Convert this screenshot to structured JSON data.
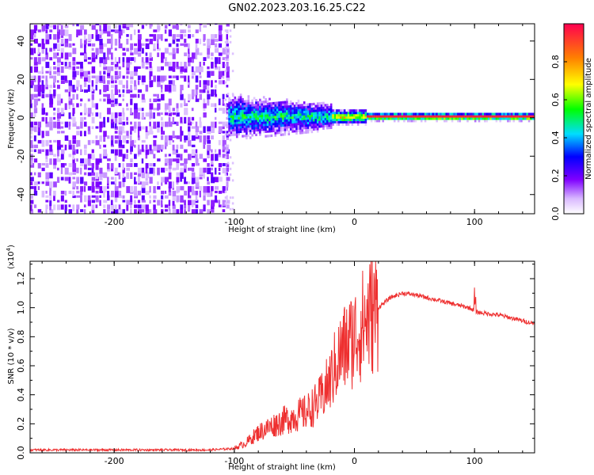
{
  "title": "GN02.2023.203.16.25.C22",
  "colors": {
    "snr_line": "#ee3030",
    "frame": "#000000",
    "background": "#ffffff"
  },
  "chart_data": [
    {
      "type": "heatmap",
      "xlabel": "Height of straight line (km)",
      "ylabel": "Frequency (Hz)",
      "xlim": [
        -270,
        150
      ],
      "ylim": [
        -50,
        49
      ],
      "xticks": [
        -200,
        -100,
        0,
        100
      ],
      "yticks": [
        -40,
        -20,
        0,
        20,
        40
      ],
      "colorbar": {
        "label": "Normalized spectral amplitude",
        "range": [
          0,
          1
        ],
        "ticks": [
          "0.0",
          "0.2",
          "0.4",
          "0.6",
          "0.8"
        ]
      }
    },
    {
      "type": "line",
      "xlabel": "Height of straight line (km)",
      "ylabel": "SNR (10 * v/v)",
      "scale_label": "(x10",
      "scale_exponent": "4",
      "scale_close": ")",
      "xlim": [
        -270,
        150
      ],
      "ylim": [
        0,
        1.32
      ],
      "xticks": [
        -200,
        -100,
        0,
        100
      ],
      "yticks": [
        "0.0",
        "0.2",
        "0.4",
        "0.6",
        "0.8",
        "1.0",
        "1.2"
      ],
      "series": [
        {
          "x": [
            -270,
            -200,
            -120,
            -100,
            -90,
            -80,
            -70,
            -60,
            -50,
            -40,
            -30,
            -25,
            -20,
            -15,
            -10,
            -5,
            0,
            5,
            10,
            20,
            30,
            40,
            50,
            60,
            70,
            80,
            90,
            95,
            98,
            100,
            102,
            110,
            120,
            130,
            140,
            150
          ],
          "y": [
            0.02,
            0.02,
            0.02,
            0.03,
            0.07,
            0.14,
            0.18,
            0.22,
            0.25,
            0.28,
            0.35,
            0.42,
            0.5,
            0.62,
            0.7,
            0.75,
            0.8,
            0.86,
            0.92,
            1.0,
            1.07,
            1.1,
            1.09,
            1.07,
            1.05,
            1.03,
            1.01,
            1.0,
            0.99,
            0.98,
            0.97,
            0.96,
            0.95,
            0.93,
            0.91,
            0.89
          ]
        }
      ]
    }
  ]
}
